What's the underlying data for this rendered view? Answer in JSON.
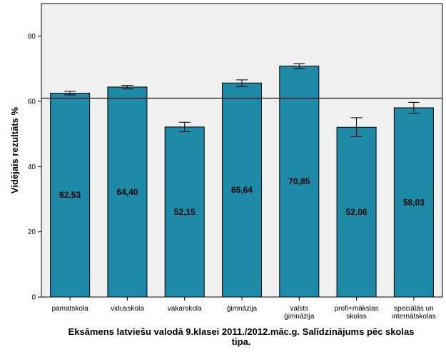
{
  "chart_data": {
    "type": "bar",
    "title": "",
    "xlabel_lines": [
      "Eksāmens latviešu valodā 9.klasei 2011./2012.māc.g. Salīdzinājums pēc skolas",
      "tipa."
    ],
    "ylabel": "Vidējais rezultāts %",
    "ylim": [
      0,
      90
    ],
    "yticks": [
      0,
      20,
      40,
      60,
      80
    ],
    "grid": false,
    "categories": [
      [
        "pamatskola"
      ],
      [
        "vidusskola"
      ],
      [
        "vakarskola"
      ],
      [
        "ģimnāzija"
      ],
      [
        "valsts",
        "ģimnāzija"
      ],
      [
        "profi+mākslas",
        "skolas"
      ],
      [
        "speciālās un",
        "internātskolas"
      ]
    ],
    "values": [
      62.53,
      64.4,
      52.15,
      65.64,
      70.85,
      52.06,
      58.03
    ],
    "value_labels": [
      "62,53",
      "64,40",
      "52,15",
      "65,64",
      "70,85",
      "52,06",
      "58,03"
    ],
    "error_low": [
      62.0,
      63.9,
      50.7,
      64.6,
      70.1,
      49.2,
      56.4
    ],
    "error_high": [
      63.1,
      64.9,
      53.6,
      66.6,
      71.6,
      55.0,
      59.7
    ],
    "reference_line": 61.0,
    "colors": {
      "bar_fill": "#1f8aa8",
      "bar_stroke": "#000000",
      "plot_background": "#f0f0f0",
      "axis": "#000000"
    }
  }
}
